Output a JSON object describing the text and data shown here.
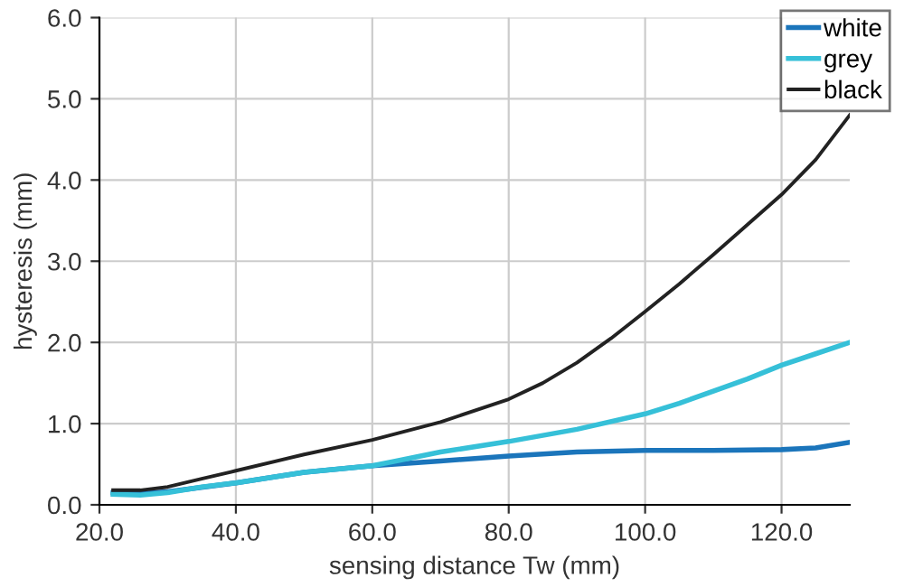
{
  "chart_data": {
    "type": "line",
    "xlabel": "sensing distance Tw (mm)",
    "ylabel": "hysteresis (mm)",
    "xlim": [
      20,
      130
    ],
    "xticks": [
      {
        "value": 20,
        "label": "20.0"
      },
      {
        "value": 40,
        "label": "40.0"
      },
      {
        "value": 60,
        "label": "60.0"
      },
      {
        "value": 80,
        "label": "80.0"
      },
      {
        "value": 100,
        "label": "100.0"
      },
      {
        "value": 120,
        "label": "120.0"
      }
    ],
    "ylim": [
      0,
      6
    ],
    "yticks": [
      {
        "value": 0,
        "label": "0.0"
      },
      {
        "value": 1,
        "label": "1.0"
      },
      {
        "value": 2,
        "label": "2.0"
      },
      {
        "value": 3,
        "label": "3.0"
      },
      {
        "value": 4,
        "label": "4.0"
      },
      {
        "value": 5,
        "label": "5.0"
      },
      {
        "value": 6,
        "label": "6.0"
      }
    ],
    "grid": true,
    "legend": "top right",
    "marker": "none",
    "line_style": "solid",
    "series": [
      {
        "name": "white",
        "color": "#1b75bb",
        "x": [
          22,
          26,
          30,
          40,
          50,
          60,
          70,
          80,
          90,
          100,
          110,
          120,
          125,
          130
        ],
        "values": [
          0.15,
          0.14,
          0.16,
          0.27,
          0.4,
          0.48,
          0.54,
          0.6,
          0.65,
          0.67,
          0.67,
          0.68,
          0.7,
          0.77
        ]
      },
      {
        "name": "grey",
        "color": "#36c0d8",
        "x": [
          22,
          26,
          30,
          35,
          40,
          50,
          60,
          70,
          80,
          90,
          100,
          105,
          110,
          115,
          120,
          125,
          130
        ],
        "values": [
          0.13,
          0.12,
          0.15,
          0.22,
          0.27,
          0.4,
          0.48,
          0.65,
          0.78,
          0.93,
          1.12,
          1.25,
          1.4,
          1.55,
          1.72,
          1.86,
          2.0
        ]
      },
      {
        "name": "black",
        "color": "#222222",
        "x": [
          22,
          26,
          30,
          35,
          40,
          50,
          60,
          70,
          80,
          85,
          90,
          95,
          100,
          105,
          110,
          115,
          120,
          125,
          130
        ],
        "values": [
          0.18,
          0.18,
          0.22,
          0.32,
          0.42,
          0.62,
          0.8,
          1.02,
          1.3,
          1.5,
          1.75,
          2.05,
          2.38,
          2.72,
          3.08,
          3.45,
          3.82,
          4.25,
          4.8
        ]
      }
    ]
  }
}
